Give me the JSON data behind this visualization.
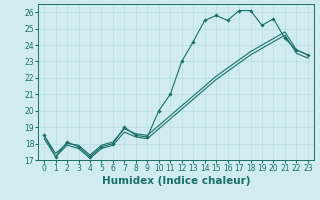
{
  "xlabel": "Humidex (Indice chaleur)",
  "ylabel": "",
  "xlim": [
    -0.5,
    23.5
  ],
  "ylim": [
    17,
    26.5
  ],
  "yticks": [
    17,
    18,
    19,
    20,
    21,
    22,
    23,
    24,
    25,
    26
  ],
  "xticks": [
    0,
    1,
    2,
    3,
    4,
    5,
    6,
    7,
    8,
    9,
    10,
    11,
    12,
    13,
    14,
    15,
    16,
    17,
    18,
    19,
    20,
    21,
    22,
    23
  ],
  "line1_x": [
    0,
    1,
    2,
    3,
    4,
    5,
    6,
    7,
    8,
    9,
    10,
    11,
    12,
    13,
    14,
    15,
    16,
    17,
    18,
    19,
    20,
    21,
    22,
    23
  ],
  "line1_y": [
    18.5,
    17.2,
    18.1,
    17.8,
    17.2,
    17.8,
    18.0,
    19.0,
    18.5,
    18.4,
    20.0,
    21.0,
    23.0,
    24.2,
    25.5,
    25.8,
    25.5,
    26.1,
    26.1,
    25.2,
    25.6,
    24.4,
    23.7,
    23.4
  ],
  "line2_x": [
    0,
    1,
    2,
    3,
    4,
    5,
    6,
    7,
    8,
    9,
    10,
    11,
    12,
    13,
    14,
    15,
    16,
    17,
    18,
    19,
    20,
    21,
    22,
    23
  ],
  "line2_y": [
    18.5,
    17.4,
    18.0,
    17.9,
    17.3,
    17.9,
    18.1,
    18.9,
    18.6,
    18.5,
    19.1,
    19.7,
    20.3,
    20.9,
    21.5,
    22.1,
    22.6,
    23.1,
    23.6,
    24.0,
    24.4,
    24.8,
    23.7,
    23.4
  ],
  "line3_x": [
    0,
    1,
    2,
    3,
    4,
    5,
    6,
    7,
    8,
    9,
    10,
    11,
    12,
    13,
    14,
    15,
    16,
    17,
    18,
    19,
    20,
    21,
    22,
    23
  ],
  "line3_y": [
    18.3,
    17.2,
    17.9,
    17.7,
    17.1,
    17.7,
    17.9,
    18.7,
    18.4,
    18.3,
    18.9,
    19.5,
    20.1,
    20.7,
    21.3,
    21.9,
    22.4,
    22.9,
    23.4,
    23.8,
    24.2,
    24.6,
    23.5,
    23.2
  ],
  "line_color": "#1a7068",
  "bg_color": "#d0ecf0",
  "grid_color": "#b8dde5",
  "marker": "D",
  "marker_size": 1.8,
  "line_width": 0.8,
  "tick_fontsize": 5.5,
  "xlabel_fontsize": 7.5
}
